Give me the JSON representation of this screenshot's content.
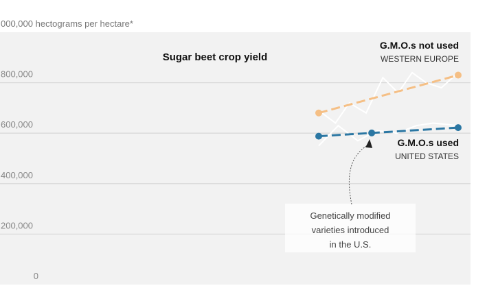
{
  "chart_data": {
    "type": "line",
    "title": "Sugar beet crop yield",
    "unit_label": "000,000 hectograms per hectare*",
    "ylim": [
      0,
      900000
    ],
    "y_ticks": [
      {
        "value": 0,
        "label": "0"
      },
      {
        "value": 200000,
        "label": "200,000"
      },
      {
        "value": 400000,
        "label": "400,000"
      },
      {
        "value": 600000,
        "label": "600,000"
      },
      {
        "value": 800000,
        "label": "800,000"
      }
    ],
    "grid": true,
    "series": [
      {
        "key": "europe",
        "name": "G.M.O.s not used",
        "region": "WESTERN EUROPE",
        "color": "#f5bf85",
        "trend": [
          [
            0,
            680000
          ],
          [
            1,
            830000
          ]
        ],
        "trend_points": [
          0,
          1
        ],
        "raw": [
          [
            0,
            690000
          ],
          [
            0.12,
            640000
          ],
          [
            0.22,
            720000
          ],
          [
            0.34,
            680000
          ],
          [
            0.46,
            820000
          ],
          [
            0.57,
            760000
          ],
          [
            0.67,
            840000
          ],
          [
            0.77,
            800000
          ],
          [
            0.88,
            780000
          ],
          [
            1,
            840000
          ]
        ]
      },
      {
        "key": "us",
        "name": "G.M.O.s used",
        "region": "UNITED STATES",
        "color": "#2b77a3",
        "trend": [
          [
            0,
            588000
          ],
          [
            1,
            622000
          ]
        ],
        "trend_points": [
          0,
          0.38,
          1
        ],
        "raw": [
          [
            0,
            550000
          ],
          [
            0.14,
            630000
          ],
          [
            0.28,
            570000
          ],
          [
            0.42,
            610000
          ],
          [
            0.56,
            600000
          ],
          [
            0.7,
            630000
          ],
          [
            0.82,
            640000
          ],
          [
            1,
            630000
          ]
        ]
      }
    ],
    "annotation": {
      "text_lines": [
        "Genetically modified",
        "varieties introduced",
        "in the U.S."
      ],
      "x": 0.38
    }
  }
}
